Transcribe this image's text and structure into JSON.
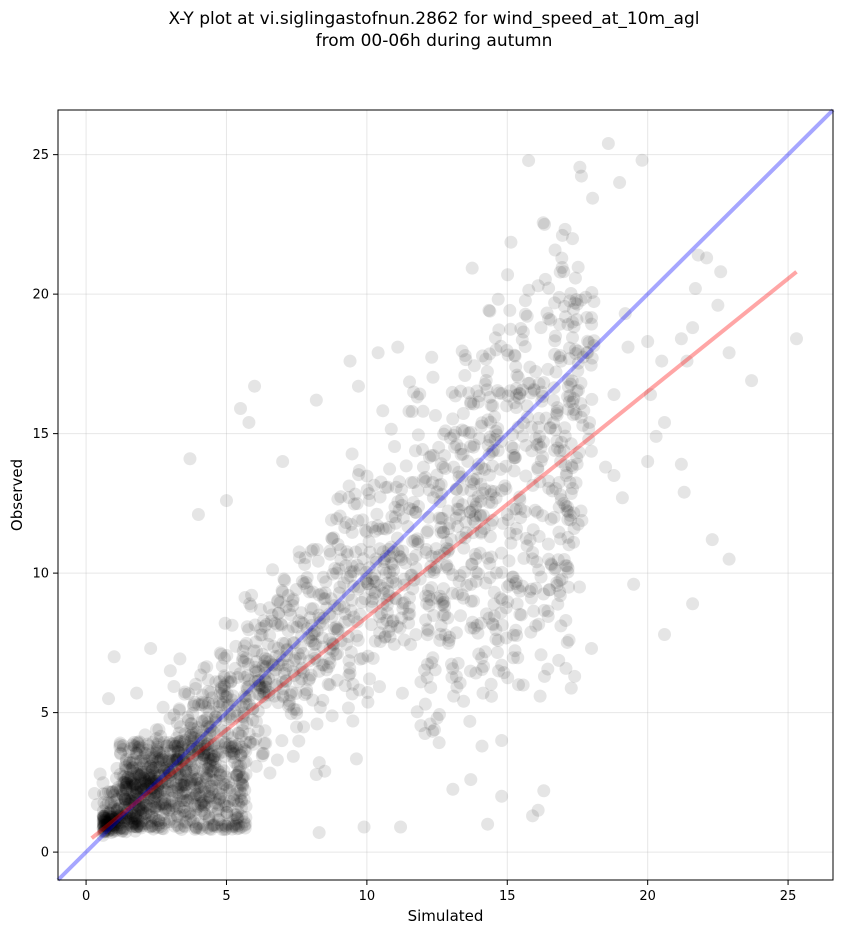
{
  "chart_data": {
    "type": "scatter",
    "title": "X-Y plot at vi.siglingastofnun.2862 for wind_speed_at_10m_agl",
    "subtitle": "from 00-06h during autumn",
    "xlabel": "Simulated",
    "ylabel": "Observed",
    "xlim": [
      -1,
      26.6
    ],
    "ylim": [
      -1,
      26.6
    ],
    "xticks": [
      0,
      5,
      10,
      15,
      20,
      25
    ],
    "yticks": [
      0,
      5,
      10,
      15,
      20,
      25
    ],
    "xtick_labels": [
      "0",
      "5",
      "10",
      "15",
      "20",
      "25"
    ],
    "ytick_labels": [
      "0",
      "5",
      "10",
      "15",
      "20",
      "25"
    ],
    "grid": true,
    "point_color": "#000000",
    "point_opacity": 0.1,
    "series": [
      {
        "kind": "points",
        "x": [
          18.6,
          19.8,
          19.0,
          21.8,
          22.1,
          22.5,
          21.7,
          21.2,
          21.6,
          22.6,
          19.2,
          19.3,
          18.8,
          20.0,
          20.5,
          21.4,
          23.7,
          25.3,
          22.9,
          22.3,
          22.9,
          21.3,
          20.6,
          21.6,
          20.6,
          16.1,
          16.2,
          15.3,
          14.6,
          13.5,
          11.1,
          10.4,
          9.4,
          9.7,
          8.2,
          6.0,
          5.8,
          3.7,
          4.0,
          5.5,
          5.0,
          7.0,
          12.0,
          11.5,
          12.8,
          13.2,
          17.9,
          17.1,
          16.9,
          18.5,
          18.8,
          19.1,
          18.0,
          15.9,
          16.1,
          16.3,
          14.3,
          14.8,
          10.3,
          1.0,
          1.8,
          4.2,
          2.3,
          3.0,
          0.5,
          0.8,
          0.3,
          20.1,
          21.2,
          0.6,
          0.4,
          1.1,
          1.4,
          0.9,
          1.6,
          2.1,
          8.3,
          9.9,
          13.7,
          14.8,
          15.4,
          14.1,
          12.5,
          11.2,
          8.5,
          6.4,
          7.5,
          9.5,
          17.4,
          19.5,
          20.0,
          20.3,
          17.2,
          16.5,
          15.5,
          14.8,
          13.8,
          15.0,
          12.2
        ],
        "y": [
          25.4,
          24.8,
          24.0,
          21.4,
          21.3,
          19.6,
          20.2,
          18.4,
          18.8,
          20.8,
          19.3,
          18.1,
          16.4,
          18.3,
          17.6,
          17.6,
          16.9,
          18.4,
          17.9,
          11.2,
          10.5,
          12.9,
          7.8,
          8.9,
          15.4,
          20.3,
          18.8,
          17.4,
          18.0,
          17.8,
          18.1,
          17.9,
          17.6,
          16.7,
          16.2,
          16.7,
          15.4,
          14.1,
          12.1,
          15.9,
          12.6,
          14.0,
          15.8,
          15.8,
          15.1,
          14.6,
          14.8,
          13.5,
          14.0,
          13.8,
          13.5,
          12.7,
          7.3,
          1.3,
          1.5,
          2.2,
          1.0,
          2.0,
          11.5,
          7.0,
          5.7,
          6.6,
          7.3,
          6.5,
          2.8,
          5.5,
          2.1,
          16.4,
          13.9,
          0.6,
          1.7,
          3.0,
          1.9,
          0.7,
          2.6,
          4.2,
          0.7,
          0.9,
          2.6,
          4.0,
          6.0,
          3.8,
          4.8,
          0.9,
          2.9,
          3.9,
          5.1,
          4.7,
          6.3,
          9.6,
          14.0,
          14.9,
          7.6,
          9.4,
          8.5,
          6.7,
          9.0,
          12.1,
          12.0
        ],
        "cluster_note": ""
      }
    ],
    "lines": [
      {
        "name": "",
        "color": "#0000ff",
        "opacity": 0.35,
        "x": [
          -1,
          26.6
        ],
        "y": [
          -1,
          26.6
        ]
      },
      {
        "name": "",
        "color": "#ff0000",
        "opacity": 0.35,
        "x": [
          0.2,
          25.3
        ],
        "y": [
          0.5,
          20.8
        ]
      }
    ]
  }
}
